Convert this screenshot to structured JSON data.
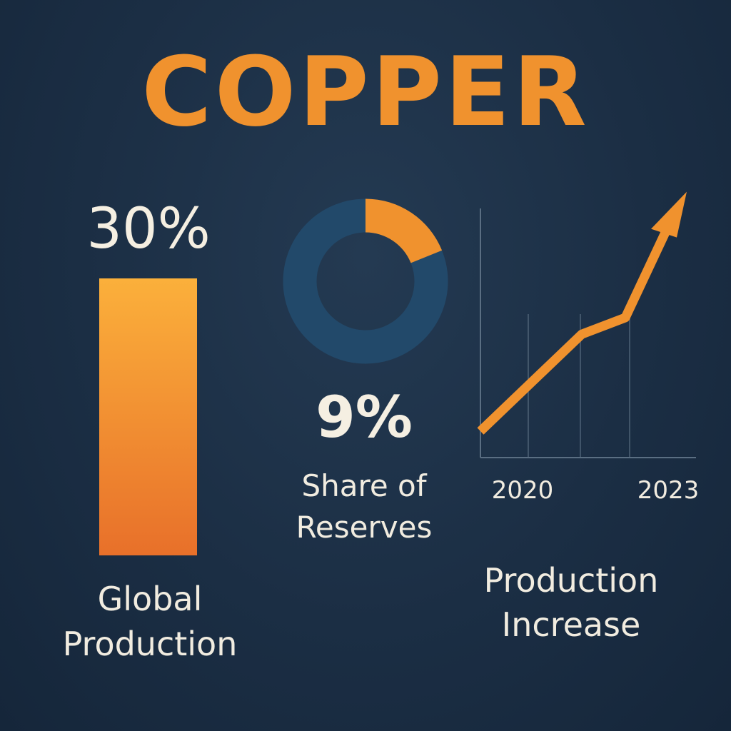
{
  "title": "COPPER",
  "colors": {
    "background": "#1b2e44",
    "accent": "#f0922e",
    "accent_light": "#fbb03b",
    "accent_dark": "#e8702a",
    "donut_rest": "#22496a",
    "text": "#f1ece0",
    "gridline": "#5a6e82"
  },
  "chart_data": [
    {
      "type": "bar",
      "values": [
        30
      ],
      "value_label": "30%",
      "caption": "Global Production"
    },
    {
      "type": "pie",
      "variant": "donut",
      "values": [
        9,
        91
      ],
      "value_label": "9%",
      "caption": "Share of Reserves"
    },
    {
      "type": "line",
      "x_tick_labels": [
        "2020",
        "2023"
      ],
      "values": [
        1.0,
        5.2,
        5.9,
        10.0
      ],
      "ylim": [
        0,
        10.5
      ],
      "grid": "vertical",
      "end_marker": "arrow",
      "caption": "Production Increase"
    }
  ]
}
